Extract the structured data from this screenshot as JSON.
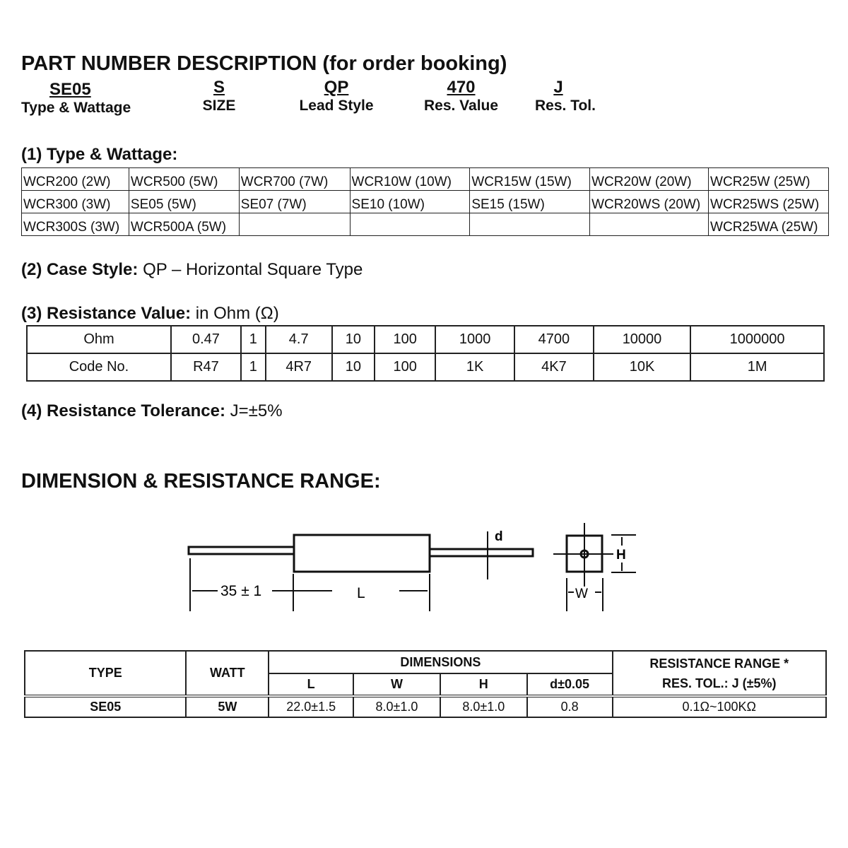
{
  "title": "PART NUMBER DESCRIPTION (for order booking)",
  "part_number": [
    {
      "code": "SE05",
      "label": "Type & Wattage"
    },
    {
      "code": "S",
      "label": "SIZE"
    },
    {
      "code": "QP",
      "label": "Lead Style"
    },
    {
      "code": "470",
      "label": "Res. Value"
    },
    {
      "code": "J",
      "label": "Res. Tol."
    }
  ],
  "type_wattage": {
    "heading": "(1) Type & Wattage:",
    "rows": [
      [
        "WCR200 (2W)",
        "WCR500 (5W)",
        "WCR700 (7W)",
        "WCR10W (10W)",
        "WCR15W (15W)",
        "WCR20W (20W)",
        "WCR25W (25W)"
      ],
      [
        "WCR300 (3W)",
        "SE05 (5W)",
        "SE07 (7W)",
        "SE10 (10W)",
        "SE15 (15W)",
        "WCR20WS (20W)",
        "WCR25WS (25W)"
      ],
      [
        "WCR300S (3W)",
        "WCR500A (5W)",
        "",
        "",
        "",
        "",
        "WCR25WA (25W)"
      ]
    ]
  },
  "case_style": {
    "heading": "(2) Case Style:",
    "value": "QP – Horizontal Square Type"
  },
  "resistance_value": {
    "heading": "(3) Resistance Value:",
    "unit": "in Ohm (Ω)",
    "rows": [
      [
        "Ohm",
        "0.47",
        "1",
        "4.7",
        "10",
        "100",
        "1000",
        "4700",
        "10000",
        "1000000"
      ],
      [
        "Code No.",
        "R47",
        "1",
        "4R7",
        "10",
        "100",
        "1K",
        "4K7",
        "10K",
        "1M"
      ]
    ]
  },
  "tolerance": {
    "heading": "(4) Resistance Tolerance:",
    "value": "J=±5%"
  },
  "dimension_title": "DIMENSION & RESISTANCE RANGE:",
  "diagram": {
    "lead_length": "35 ± 1",
    "L": "L",
    "d": "d",
    "H": "H",
    "W": "W"
  },
  "dim_table": {
    "headers": {
      "type": "TYPE",
      "watt": "WATT",
      "dimensions": "DIMENSIONS",
      "L": "L",
      "W": "W",
      "H": "H",
      "d": "d±0.05",
      "range1": "RESISTANCE RANGE *",
      "range2": "RES. TOL.: J (±5%)"
    },
    "row": {
      "type": "SE05",
      "watt": "5W",
      "L": "22.0±1.5",
      "W": "8.0±1.0",
      "H": "8.0±1.0",
      "d": "0.8",
      "range": "0.1Ω~100KΩ"
    }
  }
}
